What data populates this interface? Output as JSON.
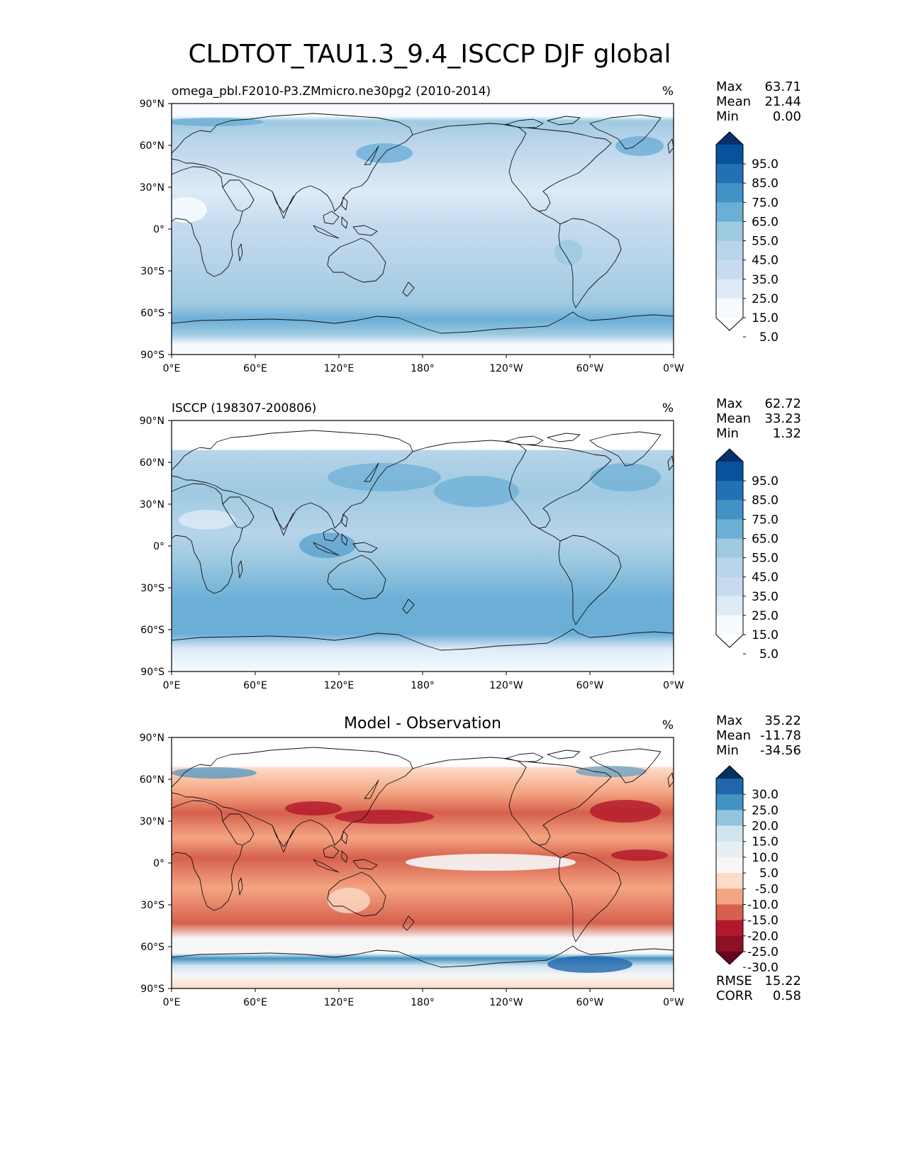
{
  "title": "CLDTOT_TAU1.3_9.4_ISCCP DJF global",
  "lat_ticks": [
    "90°N",
    "60°N",
    "30°N",
    "0°",
    "30°S",
    "60°S",
    "90°S"
  ],
  "lon_ticks": [
    "0°E",
    "60°E",
    "120°E",
    "180°",
    "120°W",
    "60°W",
    "0°W"
  ],
  "panels": [
    {
      "id": "model",
      "left_title": "omega_pbl.F2010-P3.ZMmicro.ne30pg2 (2010-2014)",
      "center_title": "",
      "units": "%",
      "stats": [
        {
          "label": "Max",
          "value": "63.71"
        },
        {
          "label": "Mean",
          "value": "21.44"
        },
        {
          "label": "Min",
          "value": "0.00"
        }
      ],
      "colorbar": {
        "labels": [
          "95.0",
          "85.0",
          "75.0",
          "65.0",
          "55.0",
          "45.0",
          "35.0",
          "25.0",
          "15.0",
          "5.0"
        ],
        "colors": [
          "#08306b",
          "#08519c",
          "#2171b5",
          "#4292c6",
          "#6baed6",
          "#9ecae1",
          "#b7d4ea",
          "#c6dbef",
          "#deebf7",
          "#f7fbff",
          "#ffffff"
        ]
      },
      "footer_stats": []
    },
    {
      "id": "obs",
      "left_title": "ISCCP (198307-200806)",
      "center_title": "",
      "units": "%",
      "stats": [
        {
          "label": "Max",
          "value": "62.72"
        },
        {
          "label": "Mean",
          "value": "33.23"
        },
        {
          "label": "Min",
          "value": "1.32"
        }
      ],
      "colorbar": {
        "labels": [
          "95.0",
          "85.0",
          "75.0",
          "65.0",
          "55.0",
          "45.0",
          "35.0",
          "25.0",
          "15.0",
          "5.0"
        ],
        "colors": [
          "#08306b",
          "#08519c",
          "#2171b5",
          "#4292c6",
          "#6baed6",
          "#9ecae1",
          "#b7d4ea",
          "#c6dbef",
          "#deebf7",
          "#f7fbff",
          "#ffffff"
        ]
      },
      "footer_stats": []
    },
    {
      "id": "diff",
      "left_title": "",
      "center_title": "Model - Observation",
      "units": "%",
      "stats": [
        {
          "label": "Max",
          "value": "35.22"
        },
        {
          "label": "Mean",
          "value": "-11.78"
        },
        {
          "label": "Min",
          "value": "-34.56"
        }
      ],
      "colorbar": {
        "labels": [
          "30.0",
          "25.0",
          "20.0",
          "15.0",
          "10.0",
          "5.0",
          "-5.0",
          "-10.0",
          "-15.0",
          "-20.0",
          "-25.0",
          "-30.0"
        ],
        "colors": [
          "#053061",
          "#2166ac",
          "#4393c3",
          "#92c5de",
          "#d1e5f0",
          "#e7eff5",
          "#f7f7f7",
          "#fddbc7",
          "#f4a582",
          "#d6604d",
          "#b2182b",
          "#8c1026",
          "#67001f"
        ]
      },
      "footer_stats": [
        {
          "label": "RMSE",
          "value": "15.22"
        },
        {
          "label": "CORR",
          "value": "0.58"
        }
      ]
    }
  ]
}
